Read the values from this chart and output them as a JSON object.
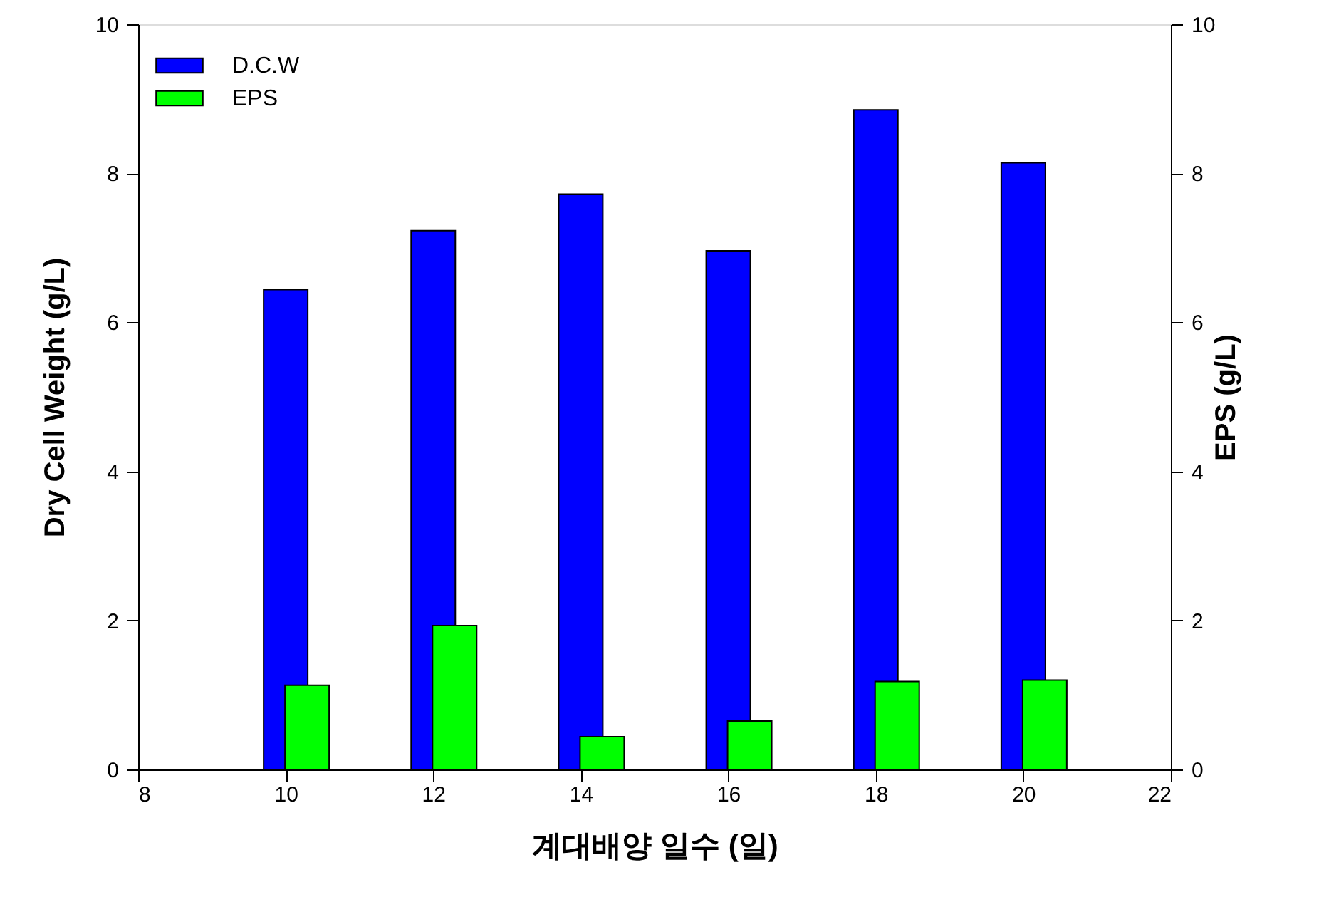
{
  "chart_data": {
    "type": "bar",
    "xlabel": "계대배양  일수 (일)",
    "ylabel": "Dry Cell Weight (g/L)",
    "y2label": "EPS (g/L)",
    "x": [
      10,
      12,
      14,
      16,
      18,
      20
    ],
    "series": [
      {
        "name": "D.C.W",
        "color": "#0000ff",
        "values": [
          6.44,
          7.23,
          7.72,
          6.96,
          8.85,
          8.14
        ]
      },
      {
        "name": "EPS",
        "color": "#00ff00",
        "axis": "y2",
        "values": [
          1.13,
          1.93,
          0.44,
          0.65,
          1.18,
          1.2
        ]
      }
    ],
    "xlim": [
      8,
      22
    ],
    "xticks": [
      8,
      10,
      12,
      14,
      16,
      18,
      20,
      22
    ],
    "ylim": [
      0,
      10
    ],
    "yticks": [
      0,
      2,
      4,
      6,
      8,
      10
    ],
    "y2lim": [
      0,
      10
    ],
    "y2ticks": [
      0,
      2,
      4,
      6,
      8,
      10
    ],
    "grid": false,
    "legend": "top left"
  }
}
